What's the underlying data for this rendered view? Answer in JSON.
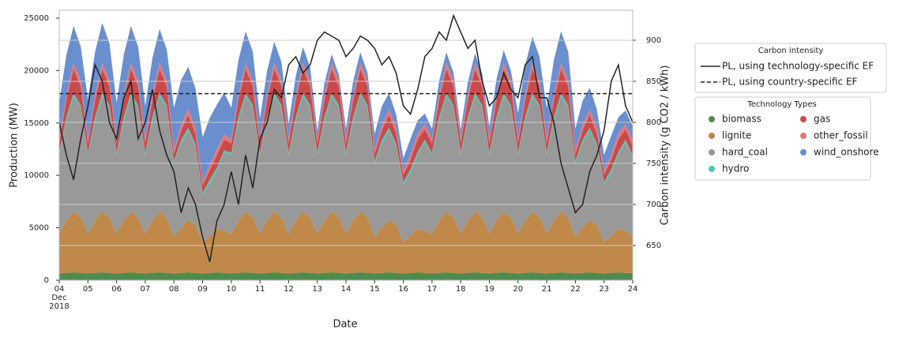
{
  "chart_data": {
    "type": "stacked_area",
    "xlabel": "Date",
    "ylabel": "Production (MW)",
    "y2label": "Carbon intensity (g CO2 / kWh)",
    "x": [
      0,
      0.25,
      0.5,
      0.75,
      1,
      1.25,
      1.5,
      1.75,
      2,
      2.25,
      2.5,
      2.75,
      3,
      3.25,
      3.5,
      3.75,
      4,
      4.25,
      4.5,
      4.75,
      5,
      5.25,
      5.5,
      5.75,
      6,
      6.25,
      6.5,
      6.75,
      7,
      7.25,
      7.5,
      7.75,
      8,
      8.25,
      8.5,
      8.75,
      9,
      9.25,
      9.5,
      9.75,
      10,
      10.25,
      10.5,
      10.75,
      11,
      11.25,
      11.5,
      11.75,
      12,
      12.25,
      12.5,
      12.75,
      13,
      13.25,
      13.5,
      13.75,
      14,
      14.25,
      14.5,
      14.75,
      15,
      15.25,
      15.5,
      15.75,
      16,
      16.25,
      16.5,
      16.75,
      17,
      17.25,
      17.5,
      17.75,
      18,
      18.25,
      18.5,
      18.75,
      19,
      19.25,
      19.5,
      19.75,
      20
    ],
    "xlim": [
      0,
      20
    ],
    "xticks": [
      {
        "value": 0,
        "label": "04\nDec\n2018"
      },
      {
        "value": 1,
        "label": "05"
      },
      {
        "value": 2,
        "label": "06"
      },
      {
        "value": 3,
        "label": "07"
      },
      {
        "value": 4,
        "label": "08"
      },
      {
        "value": 5,
        "label": "09"
      },
      {
        "value": 6,
        "label": "10"
      },
      {
        "value": 7,
        "label": "11"
      },
      {
        "value": 8,
        "label": "12"
      },
      {
        "value": 9,
        "label": "13"
      },
      {
        "value": 10,
        "label": "14"
      },
      {
        "value": 11,
        "label": "15"
      },
      {
        "value": 12,
        "label": "16"
      },
      {
        "value": 13,
        "label": "17"
      },
      {
        "value": 14,
        "label": "18"
      },
      {
        "value": 15,
        "label": "19"
      },
      {
        "value": 16,
        "label": "20"
      },
      {
        "value": 17,
        "label": "21"
      },
      {
        "value": 18,
        "label": "22"
      },
      {
        "value": 19,
        "label": "23"
      },
      {
        "value": 20,
        "label": "24"
      }
    ],
    "ylim": [
      0,
      25750
    ],
    "yticks": [
      0,
      5000,
      10000,
      15000,
      20000,
      25000
    ],
    "y2lim": [
      607.7,
      936.5
    ],
    "y2ticks": [
      650,
      700,
      750,
      800,
      850,
      900
    ],
    "grid": "y2",
    "legend_titles": [
      "Carbon intensity",
      "Technology Types"
    ],
    "series": [
      {
        "name": "biomass",
        "color": "#4f8a4f",
        "values": [
          650,
          700,
          750,
          700,
          650,
          700,
          750,
          700,
          650,
          700,
          750,
          700,
          650,
          700,
          750,
          700,
          650,
          700,
          750,
          700,
          650,
          700,
          750,
          700,
          650,
          700,
          750,
          700,
          650,
          700,
          750,
          700,
          650,
          700,
          750,
          700,
          650,
          700,
          750,
          700,
          650,
          700,
          750,
          700,
          650,
          700,
          750,
          700,
          650,
          700,
          750,
          700,
          650,
          700,
          750,
          700,
          650,
          700,
          750,
          700,
          650,
          700,
          750,
          700,
          650,
          700,
          750,
          700,
          650,
          700,
          750,
          700,
          650,
          700,
          750,
          700,
          650,
          700,
          750,
          700,
          700
        ]
      },
      {
        "name": "lignite",
        "color": "#c0894a",
        "values": [
          3800,
          5000,
          5800,
          5300,
          3800,
          5000,
          5800,
          5300,
          3800,
          5000,
          5800,
          5300,
          3800,
          5000,
          5800,
          5300,
          3500,
          4300,
          5000,
          4600,
          3000,
          3500,
          4200,
          4000,
          3800,
          5000,
          5800,
          5300,
          3800,
          5000,
          5800,
          5300,
          3800,
          5000,
          5800,
          5300,
          3800,
          5000,
          5800,
          5300,
          3800,
          5000,
          5800,
          5300,
          3500,
          4300,
          5000,
          4600,
          3000,
          3500,
          4200,
          4000,
          3800,
          5000,
          5800,
          5300,
          3800,
          5000,
          5800,
          5300,
          3800,
          5000,
          5800,
          5300,
          3800,
          5000,
          5800,
          5300,
          3800,
          5000,
          5800,
          5300,
          3500,
          4300,
          5000,
          4600,
          3000,
          3500,
          4200,
          4000,
          3500
        ]
      },
      {
        "name": "hard_coal",
        "color": "#999999",
        "values": [
          7500,
          9500,
          11000,
          10500,
          7500,
          9500,
          11000,
          10500,
          7500,
          9500,
          11000,
          10500,
          7500,
          9500,
          11000,
          10500,
          7000,
          8000,
          8500,
          7500,
          4500,
          5000,
          5500,
          7500,
          7500,
          9500,
          11000,
          10500,
          7500,
          9500,
          11000,
          10500,
          7500,
          9500,
          11000,
          10500,
          7500,
          9500,
          11000,
          10500,
          7500,
          9500,
          11000,
          10500,
          7000,
          8000,
          8500,
          7500,
          5500,
          6000,
          7000,
          8500,
          7500,
          9500,
          11000,
          10500,
          7500,
          9500,
          11000,
          10500,
          7500,
          9500,
          11000,
          10500,
          7500,
          9500,
          11000,
          10500,
          7500,
          9500,
          11000,
          10500,
          7000,
          8000,
          8500,
          7500,
          5500,
          6000,
          7000,
          8500,
          7500
        ]
      },
      {
        "name": "hydro",
        "color": "#4dc9b0",
        "values": [
          200,
          400,
          300,
          200,
          200,
          400,
          300,
          200,
          200,
          400,
          300,
          200,
          200,
          400,
          300,
          200,
          200,
          400,
          300,
          200,
          200,
          400,
          300,
          200,
          200,
          400,
          300,
          200,
          200,
          400,
          300,
          200,
          200,
          400,
          300,
          200,
          200,
          400,
          300,
          200,
          200,
          400,
          300,
          200,
          200,
          400,
          300,
          200,
          200,
          400,
          300,
          200,
          200,
          400,
          300,
          200,
          200,
          400,
          300,
          200,
          200,
          400,
          300,
          200,
          200,
          400,
          300,
          200,
          200,
          400,
          300,
          200,
          200,
          400,
          300,
          200,
          200,
          400,
          300,
          200,
          200
        ]
      },
      {
        "name": "gas",
        "color": "#c94a4a",
        "values": [
          900,
          1600,
          2300,
          1800,
          900,
          1600,
          2300,
          1800,
          900,
          1600,
          2300,
          1800,
          900,
          1600,
          2300,
          1800,
          700,
          900,
          1200,
          1000,
          700,
          900,
          1200,
          1000,
          900,
          1600,
          2300,
          1800,
          900,
          1600,
          2300,
          1800,
          900,
          1600,
          2300,
          1800,
          900,
          1600,
          2300,
          1800,
          900,
          1600,
          2300,
          1800,
          700,
          900,
          1200,
          1000,
          700,
          900,
          1200,
          1000,
          900,
          1600,
          2300,
          1800,
          900,
          1600,
          2300,
          1800,
          900,
          1600,
          2300,
          1800,
          900,
          1600,
          2300,
          1800,
          900,
          1600,
          2300,
          1800,
          700,
          900,
          1200,
          1000,
          700,
          900,
          1200,
          1000,
          900
        ]
      },
      {
        "name": "other_fossil",
        "color": "#e07a7c",
        "values": [
          400,
          500,
          600,
          500,
          400,
          500,
          600,
          500,
          400,
          500,
          600,
          500,
          400,
          500,
          600,
          500,
          400,
          500,
          600,
          500,
          400,
          500,
          600,
          500,
          400,
          500,
          600,
          500,
          400,
          500,
          600,
          500,
          400,
          500,
          600,
          500,
          400,
          500,
          600,
          500,
          400,
          500,
          600,
          500,
          400,
          500,
          600,
          500,
          400,
          500,
          600,
          500,
          400,
          500,
          600,
          500,
          400,
          500,
          600,
          500,
          400,
          500,
          600,
          500,
          400,
          500,
          600,
          500,
          400,
          500,
          600,
          500,
          400,
          500,
          600,
          500,
          400,
          500,
          600,
          500,
          400
        ]
      },
      {
        "name": "wind_onshore",
        "color": "#6a8fcf",
        "values": [
          3500,
          3800,
          3500,
          3300,
          3800,
          4100,
          3800,
          3600,
          3500,
          3800,
          3500,
          3300,
          3200,
          3500,
          3200,
          3000,
          4000,
          4300,
          4000,
          3800,
          4200,
          4500,
          4200,
          4000,
          3000,
          3300,
          3000,
          2800,
          2000,
          2300,
          2000,
          1800,
          1500,
          1800,
          1500,
          1300,
          800,
          1100,
          800,
          600,
          1000,
          1300,
          1000,
          800,
          1500,
          1800,
          1500,
          1300,
          1200,
          1500,
          1200,
          1000,
          1000,
          1300,
          1000,
          800,
          900,
          1200,
          900,
          700,
          1200,
          1500,
          1200,
          1000,
          2500,
          2800,
          2500,
          2300,
          3000,
          3300,
          3000,
          2800,
          2000,
          2300,
          2000,
          1800,
          1500,
          1800,
          1500,
          1300,
          1500
        ]
      }
    ],
    "lines": [
      {
        "name": "PL, using technology-specific EF",
        "color": "#222222",
        "axis": "y2",
        "values": [
          800,
          760,
          730,
          780,
          820,
          870,
          850,
          800,
          780,
          830,
          850,
          780,
          800,
          840,
          790,
          760,
          740,
          690,
          720,
          700,
          660,
          630,
          680,
          700,
          740,
          700,
          760,
          720,
          780,
          800,
          840,
          830,
          870,
          880,
          860,
          870,
          900,
          910,
          905,
          900,
          880,
          890,
          905,
          900,
          890,
          870,
          880,
          860,
          820,
          810,
          840,
          880,
          890,
          910,
          900,
          930,
          910,
          890,
          900,
          850,
          820,
          830,
          860,
          840,
          830,
          870,
          880,
          830,
          830,
          800,
          750,
          720,
          690,
          700,
          740,
          760,
          790,
          850,
          870,
          820,
          800
        ]
      }
    ],
    "reference_line": {
      "name": "PL, using country-specific EF",
      "color": "#222222",
      "axis": "y2",
      "value": 835,
      "dashed": true
    }
  }
}
